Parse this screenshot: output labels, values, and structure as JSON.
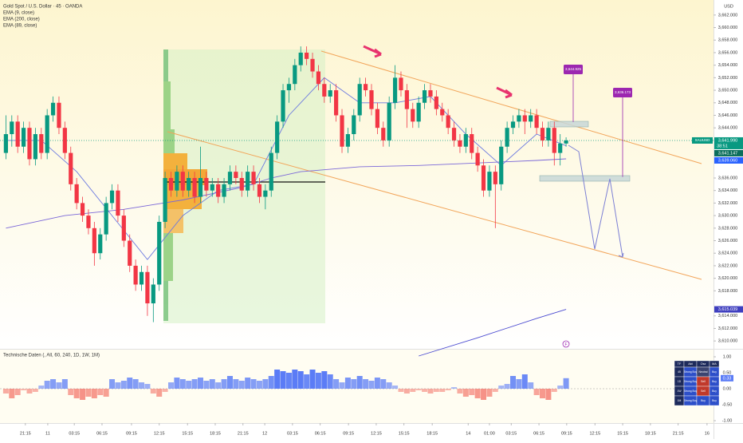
{
  "chart_data": [
    {
      "type": "candlestick",
      "title": "Gold Spot / U.S. Dollar · 45 · OANDA",
      "currency": "USD",
      "symbol": "XAUUSD",
      "up_color": "#089981",
      "down_color": "#f23645",
      "xlim": [
        -1,
        120
      ],
      "ylim": [
        3609,
        3664.4
      ],
      "yticks": [
        {
          "value": 3662,
          "label": "3,662.000"
        },
        {
          "value": 3660,
          "label": "3,660.000"
        },
        {
          "value": 3658,
          "label": "3,658.000"
        },
        {
          "value": 3656,
          "label": "3,656.000"
        },
        {
          "value": 3654,
          "label": "3,654.000"
        },
        {
          "value": 3652,
          "label": "3,652.000"
        },
        {
          "value": 3650,
          "label": "3,650.000"
        },
        {
          "value": 3648,
          "label": "3,648.000"
        },
        {
          "value": 3646,
          "label": "3,646.000"
        },
        {
          "value": 3644,
          "label": "3,644.000"
        },
        {
          "value": 3636,
          "label": "3,636.000"
        },
        {
          "value": 3634,
          "label": "3,634.000"
        },
        {
          "value": 3632,
          "label": "3,632.000"
        },
        {
          "value": 3630,
          "label": "3,630.000"
        },
        {
          "value": 3628,
          "label": "3,628.000"
        },
        {
          "value": 3626,
          "label": "3,626.000"
        },
        {
          "value": 3624,
          "label": "3,624.000"
        },
        {
          "value": 3622,
          "label": "3,622.000"
        },
        {
          "value": 3620,
          "label": "3,620.000"
        },
        {
          "value": 3618,
          "label": "3,618.000"
        },
        {
          "value": 3614,
          "label": "3,614.000"
        },
        {
          "value": 3612,
          "label": "3,612.000"
        },
        {
          "value": 3610,
          "label": "3,610.000"
        }
      ],
      "xticks": [
        {
          "value": 3.3,
          "label": "21:15"
        },
        {
          "value": 7.1,
          "label": "11"
        },
        {
          "value": 11.6,
          "label": "03:15"
        },
        {
          "value": 16.3,
          "label": "06:15"
        },
        {
          "value": 21.3,
          "label": "09:15"
        },
        {
          "value": 26,
          "label": "12:15"
        },
        {
          "value": 30.8,
          "label": "15:15"
        },
        {
          "value": 35.5,
          "label": "18:15"
        },
        {
          "value": 40.2,
          "label": "21:15"
        },
        {
          "value": 43.9,
          "label": "12"
        },
        {
          "value": 48.6,
          "label": "03:15"
        },
        {
          "value": 53.3,
          "label": "06:15"
        },
        {
          "value": 58.1,
          "label": "09:15"
        },
        {
          "value": 62.8,
          "label": "12:15"
        },
        {
          "value": 67.5,
          "label": "15:15"
        },
        {
          "value": 72.3,
          "label": "18:15"
        },
        {
          "value": 78.4,
          "label": "14"
        },
        {
          "value": 82,
          "label": "01:00"
        },
        {
          "value": 85.7,
          "label": "03:15"
        },
        {
          "value": 90.4,
          "label": "06:15"
        },
        {
          "value": 95.1,
          "label": "09:15"
        },
        {
          "value": 99.9,
          "label": "12:15"
        },
        {
          "value": 104.6,
          "label": "15:15"
        },
        {
          "value": 109.3,
          "label": "18:15"
        },
        {
          "value": 114,
          "label": "21:15"
        },
        {
          "value": 118.9,
          "label": "16"
        }
      ],
      "candles": [
        [
          3640,
          3646,
          3639,
          3643
        ],
        [
          3643,
          3646,
          3641,
          3645
        ],
        [
          3645,
          3646,
          3640,
          3641
        ],
        [
          3641,
          3645,
          3640,
          3644
        ],
        [
          3644,
          3645,
          3638,
          3639
        ],
        [
          3639,
          3644,
          3638,
          3643
        ],
        [
          3643,
          3644,
          3639,
          3640
        ],
        [
          3640,
          3647,
          3639,
          3646
        ],
        [
          3646,
          3649,
          3645,
          3648
        ],
        [
          3648,
          3649,
          3643,
          3644
        ],
        [
          3644,
          3645,
          3639,
          3640
        ],
        [
          3640,
          3641,
          3634,
          3635
        ],
        [
          3635,
          3636,
          3631,
          3632
        ],
        [
          3632,
          3633,
          3629,
          3630
        ],
        [
          3630,
          3631,
          3627,
          3628
        ],
        [
          3628,
          3629,
          3622,
          3624
        ],
        [
          3624,
          3628,
          3623,
          3627
        ],
        [
          3627,
          3633,
          3626,
          3632
        ],
        [
          3632,
          3635,
          3631,
          3634
        ],
        [
          3634,
          3635,
          3629,
          3630
        ],
        [
          3630,
          3631,
          3625,
          3626
        ],
        [
          3626,
          3627,
          3621,
          3622
        ],
        [
          3622,
          3623,
          3618,
          3619
        ],
        [
          3619,
          3622,
          3618,
          3621
        ],
        [
          3621,
          3622,
          3614,
          3616
        ],
        [
          3616,
          3620,
          3613,
          3619
        ],
        [
          3619,
          3630,
          3618,
          3629
        ],
        [
          3629,
          3637,
          3628,
          3636
        ],
        [
          3636,
          3637,
          3633,
          3634
        ],
        [
          3634,
          3638,
          3633,
          3637
        ],
        [
          3637,
          3638,
          3633,
          3634
        ],
        [
          3634,
          3637,
          3633,
          3636
        ],
        [
          3636,
          3637,
          3632,
          3633
        ],
        [
          3633,
          3641,
          3632,
          3636
        ],
        [
          3636,
          3637,
          3633,
          3634
        ],
        [
          3634,
          3636,
          3633,
          3635
        ],
        [
          3635,
          3636,
          3632,
          3633
        ],
        [
          3633,
          3636,
          3632,
          3635
        ],
        [
          3635,
          3638,
          3634,
          3637
        ],
        [
          3637,
          3638,
          3635,
          3636
        ],
        [
          3636,
          3637,
          3633,
          3634
        ],
        [
          3634,
          3638,
          3633,
          3637
        ],
        [
          3637,
          3638,
          3634,
          3635
        ],
        [
          3635,
          3636,
          3632,
          3633
        ],
        [
          3633,
          3635,
          3631,
          3634
        ],
        [
          3634,
          3641,
          3633,
          3640
        ],
        [
          3640,
          3646,
          3639,
          3645
        ],
        [
          3645,
          3651,
          3644,
          3650
        ],
        [
          3650,
          3652,
          3648,
          3651
        ],
        [
          3651,
          3655,
          3650,
          3654
        ],
        [
          3654,
          3657,
          3653,
          3656
        ],
        [
          3656,
          3657,
          3654,
          3655
        ],
        [
          3655,
          3656,
          3652,
          3653
        ],
        [
          3653,
          3654,
          3650,
          3651
        ],
        [
          3651,
          3652,
          3648,
          3649
        ],
        [
          3649,
          3651,
          3648,
          3650
        ],
        [
          3650,
          3651,
          3645,
          3646
        ],
        [
          3646,
          3647,
          3640,
          3641
        ],
        [
          3641,
          3644,
          3640,
          3643
        ],
        [
          3643,
          3647,
          3642,
          3646
        ],
        [
          3646,
          3652,
          3645,
          3651
        ],
        [
          3651,
          3652,
          3649,
          3650
        ],
        [
          3650,
          3651,
          3646,
          3647
        ],
        [
          3647,
          3648,
          3643,
          3644
        ],
        [
          3644,
          3645,
          3641,
          3642
        ],
        [
          3642,
          3649,
          3641,
          3648
        ],
        [
          3648,
          3654,
          3647,
          3652
        ],
        [
          3652,
          3653,
          3649,
          3650
        ],
        [
          3650,
          3651,
          3644,
          3647
        ],
        [
          3647,
          3648,
          3644,
          3645
        ],
        [
          3645,
          3649,
          3644,
          3648
        ],
        [
          3648,
          3651,
          3647,
          3650
        ],
        [
          3650,
          3651,
          3648,
          3649
        ],
        [
          3649,
          3650,
          3646,
          3647
        ],
        [
          3647,
          3648,
          3645,
          3646
        ],
        [
          3646,
          3647,
          3643,
          3644
        ],
        [
          3644,
          3645,
          3641,
          3642
        ],
        [
          3642,
          3643,
          3640,
          3641
        ],
        [
          3641,
          3644,
          3640,
          3643
        ],
        [
          3643,
          3644,
          3639,
          3640
        ],
        [
          3640,
          3641,
          3637,
          3638
        ],
        [
          3638,
          3639,
          3633,
          3634
        ],
        [
          3634,
          3638,
          3633,
          3637
        ],
        [
          3637,
          3638,
          3628,
          3635
        ],
        [
          3635,
          3642,
          3634,
          3641
        ],
        [
          3641,
          3645,
          3640,
          3644
        ],
        [
          3644,
          3646,
          3643,
          3645
        ],
        [
          3645,
          3647,
          3644,
          3646
        ],
        [
          3646,
          3647,
          3643,
          3645
        ],
        [
          3645,
          3647,
          3644,
          3646
        ],
        [
          3646,
          3647,
          3643,
          3644
        ],
        [
          3644,
          3645,
          3641,
          3642
        ],
        [
          3642,
          3645,
          3641,
          3644
        ],
        [
          3644,
          3645,
          3638,
          3640
        ],
        [
          3640,
          3643,
          3638,
          3641.5
        ],
        [
          3641.5,
          3642.5,
          3641,
          3641.99
        ]
      ],
      "series": [
        {
          "name": "EMA (9, close)",
          "color": "#6c7ae0",
          "x": [
            0,
            6,
            12,
            18,
            24,
            30,
            36,
            42,
            48,
            54,
            60,
            66,
            72,
            78,
            84,
            90,
            95
          ],
          "values": [
            3642,
            3642,
            3637,
            3630,
            3623,
            3630,
            3634,
            3635,
            3646,
            3652,
            3648,
            3648,
            3649,
            3643,
            3638,
            3643,
            3641.147
          ]
        },
        {
          "name": "EMA (200, close)",
          "color": "#4b4bd1",
          "x": [
            70,
            80,
            90,
            95
          ],
          "values": [
            3607.6,
            3610.5,
            3613.6,
            3615.039
          ]
        },
        {
          "name": "EMA (89, close)",
          "color": "#7b68d8",
          "x": [
            0,
            10,
            20,
            30,
            40,
            45,
            50,
            60,
            70,
            80,
            90,
            95
          ],
          "values": [
            3628,
            3630,
            3631,
            3632.5,
            3634.5,
            3636,
            3637,
            3637.8,
            3638,
            3638.4,
            3638.8,
            3639.06
          ]
        }
      ],
      "price_tags": [
        {
          "value": 3641.99,
          "label": "3,641.990",
          "color": "#089981"
        },
        {
          "value": 3641.147,
          "label": "3,641.147",
          "color": "#0b6e5c"
        },
        {
          "value": 3639.06,
          "label": "3,639.060",
          "color": "#2962ff"
        },
        {
          "value": 3615.039,
          "label": "3,615.039",
          "color": "#3f3fbf"
        }
      ],
      "countdown": "38:51",
      "callouts": [
        {
          "value": 3644.925,
          "label": "3,644.925"
        },
        {
          "value": 3636.173,
          "label": "3,636.173"
        }
      ]
    },
    {
      "type": "histogram",
      "title": "Technische Daten (, All, 60, 240, 1D, 1W, 1M)",
      "pos_color": "#5b7cf6",
      "neg_color": "#f4776b",
      "ylim": [
        -1.075,
        1.225
      ],
      "yticks": [
        {
          "value": 1,
          "label": "1.00"
        },
        {
          "value": 0.5,
          "label": "0.50"
        },
        {
          "value": 0,
          "label": "0.00"
        },
        {
          "value": -0.5,
          "label": "-0.50"
        },
        {
          "value": -1,
          "label": "-1.00"
        }
      ],
      "values": [
        -0.15,
        -0.3,
        -0.2,
        -0.05,
        -0.15,
        -0.1,
        0.1,
        0.25,
        0.3,
        0.2,
        0.3,
        -0.2,
        -0.3,
        -0.35,
        -0.25,
        -0.3,
        -0.2,
        -0.25,
        0.3,
        0.2,
        0.25,
        0.35,
        0.3,
        0.2,
        0.15,
        -0.15,
        -0.25,
        -0.1,
        0.2,
        0.35,
        0.3,
        0.25,
        0.3,
        0.35,
        0.25,
        0.3,
        0.2,
        0.3,
        0.4,
        0.3,
        0.25,
        0.35,
        0.3,
        0.25,
        0.3,
        0.4,
        0.6,
        0.55,
        0.5,
        0.6,
        0.55,
        0.45,
        0.6,
        0.5,
        0.55,
        0.45,
        0.3,
        0.2,
        0.35,
        0.3,
        0.4,
        0.3,
        0.25,
        0.35,
        0.3,
        0.2,
        0.1,
        -0.1,
        -0.15,
        -0.1,
        -0.05,
        -0.1,
        -0.15,
        -0.1,
        -0.1,
        -0.05,
        0.05,
        -0.15,
        -0.25,
        -0.2,
        -0.3,
        -0.35,
        -0.25,
        -0.1,
        0.1,
        0.15,
        0.4,
        0.3,
        0.45,
        0.2,
        -0.2,
        -0.3,
        -0.35,
        -0.1,
        0.1,
        0.33
      ],
      "price_tag": {
        "value": 0.33,
        "label": "0.33"
      },
      "table": {
        "header": [
          "TF",
          "Akt",
          "Osz",
          "MA"
        ],
        "rows": [
          [
            "45",
            "Strong Buy",
            "Neutral",
            "Buy"
          ],
          [
            "1D",
            "Strong Buy",
            "Sell",
            "Buy"
          ],
          [
            "1W",
            "Strong Buy",
            "Sell",
            "Buy"
          ],
          [
            "1M",
            "Strong Buy",
            "Buy",
            "Buy"
          ]
        ]
      }
    }
  ]
}
